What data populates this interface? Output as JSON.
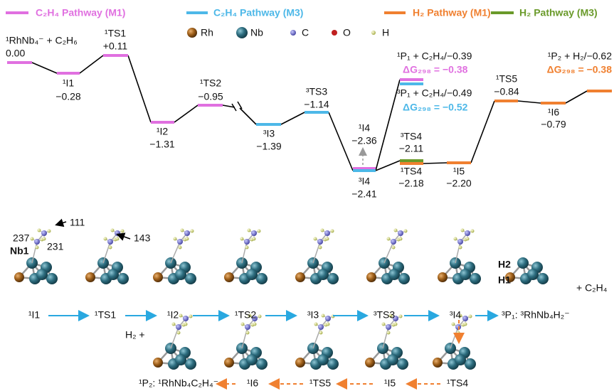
{
  "legend": [
    {
      "label": "C₂H₄ Pathway (M1)",
      "color": "#e070e0"
    },
    {
      "label": "C₂H₄ Pathway (M3)",
      "color": "#4db8e8"
    },
    {
      "label": "H₂ Pathway (M1)",
      "color": "#f08030"
    },
    {
      "label": "H₂ Pathway (M3)",
      "color": "#6a9a2a"
    }
  ],
  "atom_legend": [
    {
      "label": "Rh",
      "color": "#a0601a"
    },
    {
      "label": "Nb",
      "color": "#2e6e80"
    },
    {
      "label": "C",
      "color": "#6a6ac8"
    },
    {
      "label": "O",
      "color": "#c02020"
    },
    {
      "label": "H",
      "color": "#d8e070"
    }
  ],
  "levels": [
    {
      "label": "¹RhNb₄⁻ + C₂H₆",
      "energy": "0.00",
      "color": "#e070e0"
    },
    {
      "label": "¹I1",
      "energy": "−0.28",
      "color": "#e070e0"
    },
    {
      "label": "¹TS1",
      "energy": "+0.11",
      "color": "#e070e0"
    },
    {
      "label": "¹I2",
      "energy": "−1.31",
      "color": "#e070e0"
    },
    {
      "label": "¹TS2",
      "energy": "−0.95",
      "color": "#e070e0"
    },
    {
      "label": "³I3",
      "energy": "−1.39",
      "color": "#4db8e8"
    },
    {
      "label": "³TS3",
      "energy": "−1.14",
      "color": "#4db8e8"
    },
    {
      "label": "³I4",
      "energy": "−2.41",
      "color": "#4db8e8"
    },
    {
      "label": "¹I4",
      "energy": "−2.36"
    },
    {
      "label": "¹P₁ + C₂H₄/−0.39",
      "dg": "ΔG₂₉₈ = −0.38",
      "color": "#e070e0"
    },
    {
      "label": "³P₁ + C₂H₄/−0.49",
      "dg": "ΔG₂₉₈ = −0.52",
      "color": "#4db8e8"
    },
    {
      "label": "³TS4",
      "energy": "−2.11",
      "color": "#6a9a2a"
    },
    {
      "label": "¹TS4",
      "energy": "−2.18",
      "color": "#f08030"
    },
    {
      "label": "¹I5",
      "energy": "−2.20",
      "color": "#f08030"
    },
    {
      "label": "¹TS5",
      "energy": "−0.84",
      "color": "#f08030"
    },
    {
      "label": "¹I6",
      "energy": "−0.79",
      "color": "#f08030"
    },
    {
      "label": "¹P₂ + H₂/−0.62",
      "dg": "ΔG₂₉₈ = −0.38",
      "color": "#f08030"
    }
  ],
  "structures": {
    "row1": [
      "¹I1",
      "¹TS1",
      "¹I2",
      "¹TS2",
      "³I3",
      "³TS3",
      "³I4",
      "³P₁:  ³RhNb₄H₂⁻"
    ],
    "row2": [
      "¹P₂:  ¹RhNb₄C₂H₄⁻",
      "¹I6",
      "¹TS5",
      "¹I5",
      "¹TS4"
    ]
  },
  "annotations": [
    "111",
    "143",
    "237",
    "231",
    "Nb1",
    "H2",
    "H1",
    "+ C₂H₄",
    "H₂ +"
  ]
}
